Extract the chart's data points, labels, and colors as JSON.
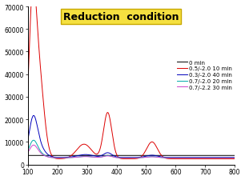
{
  "title": "Reduction  condition",
  "title_fontsize": 9,
  "title_fontweight": "bold",
  "title_box_color": "#f5e040",
  "title_box_edge": "#c8a800",
  "xlim": [
    100,
    800
  ],
  "ylim": [
    0,
    70000
  ],
  "yticks": [
    0,
    10000,
    20000,
    30000,
    40000,
    50000,
    60000,
    70000
  ],
  "ytick_labels": [
    "0",
    "10000",
    "20000",
    "30000",
    "40000",
    "50000",
    "60000",
    "70000"
  ],
  "xticks": [
    100,
    200,
    300,
    400,
    500,
    600,
    700,
    800
  ],
  "legend": [
    {
      "label": "0 min",
      "color": "#000000"
    },
    {
      "label": "0.5/-2.0 10 min",
      "color": "#dd0000"
    },
    {
      "label": "0.3/-2.0 40 min",
      "color": "#0000bb"
    },
    {
      "label": "0.7/-2.0 20 min",
      "color": "#00aaaa"
    },
    {
      "label": "0.7/-2.2 30 min",
      "color": "#cc44cc"
    }
  ],
  "background": "#ffffff",
  "figsize": [
    3.06,
    2.26
  ],
  "dpi": 100
}
